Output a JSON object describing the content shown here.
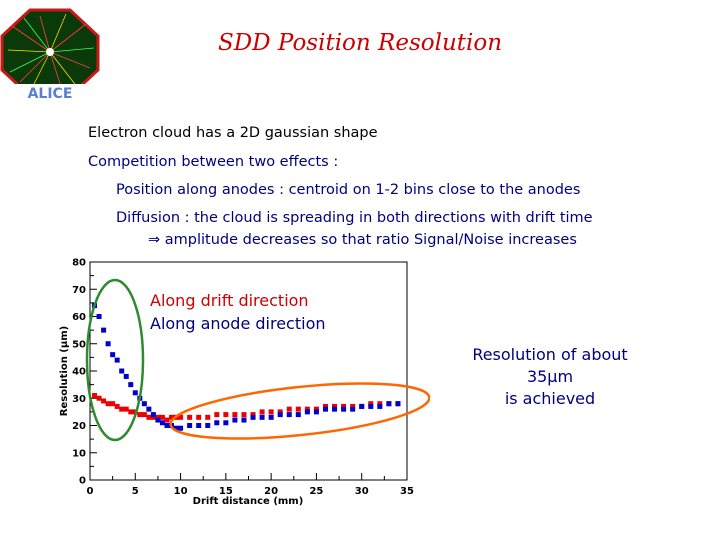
{
  "slide": {
    "title": "SDD Position Resolution",
    "logo_text": "ALICE",
    "lines": [
      "Electron cloud has a 2D gaussian shape",
      "Competition between two effects :",
      "Position along anodes : centroid on 1-2 bins close to the anodes",
      "Diffusion : the cloud is spreading in both directions with drift time",
      "⇒ amplitude decreases so that ratio Signal/Noise increases"
    ],
    "conclusion": [
      "Resolution of about 35μm",
      "is achieved"
    ]
  },
  "colors": {
    "title": "#cc0000",
    "text": "#000080",
    "drift": "#ee0000",
    "anode": "#0000cc",
    "ellipse_green": "#2e8b2e",
    "ellipse_orange": "#ff6600"
  },
  "chart_data": {
    "type": "scatter",
    "xlabel": "Drift distance (mm)",
    "ylabel": "Resolution (μm)",
    "xlim": [
      0,
      35
    ],
    "ylim": [
      0,
      80
    ],
    "xticks": [
      "0",
      "5",
      "10",
      "15",
      "20",
      "25",
      "30",
      "35"
    ],
    "yticks": [
      "0",
      "10",
      "20",
      "30",
      "40",
      "50",
      "60",
      "70",
      "80"
    ],
    "series": [
      {
        "name": "Along drift direction",
        "color": "#ee0000",
        "x": [
          0.5,
          1,
          1.5,
          2,
          2.5,
          3,
          3.5,
          4,
          4.5,
          5,
          5.5,
          6,
          6.5,
          7,
          7.5,
          8,
          8.5,
          9,
          9.5,
          10,
          11,
          12,
          13,
          14,
          15,
          16,
          17,
          18,
          19,
          20,
          21,
          22,
          23,
          24,
          25,
          26,
          27,
          28,
          29,
          30,
          31,
          32,
          33,
          34
        ],
        "y": [
          31,
          30,
          29,
          28,
          28,
          27,
          26,
          26,
          25,
          25,
          24,
          24,
          23,
          23,
          23,
          23,
          22,
          23,
          23,
          23,
          23,
          23,
          23,
          24,
          24,
          24,
          24,
          24,
          25,
          25,
          25,
          26,
          26,
          26,
          26,
          27,
          27,
          27,
          27,
          27,
          28,
          28,
          28,
          28
        ]
      },
      {
        "name": "Along anode direction",
        "color": "#0000cc",
        "x": [
          0.5,
          1,
          1.5,
          2,
          2.5,
          3,
          3.5,
          4,
          4.5,
          5,
          5.5,
          6,
          6.5,
          7,
          7.5,
          8,
          8.5,
          9,
          9.5,
          10,
          11,
          12,
          13,
          14,
          15,
          16,
          17,
          18,
          19,
          20,
          21,
          22,
          23,
          24,
          25,
          26,
          27,
          28,
          29,
          30,
          31,
          32,
          33,
          34
        ],
        "y": [
          64,
          60,
          55,
          50,
          46,
          44,
          40,
          38,
          35,
          32,
          30,
          28,
          26,
          24,
          22,
          21,
          20,
          20,
          19,
          19,
          20,
          20,
          20,
          21,
          21,
          22,
          22,
          23,
          23,
          23,
          24,
          24,
          24,
          25,
          25,
          26,
          26,
          26,
          26,
          27,
          27,
          27,
          28,
          28
        ]
      }
    ]
  }
}
